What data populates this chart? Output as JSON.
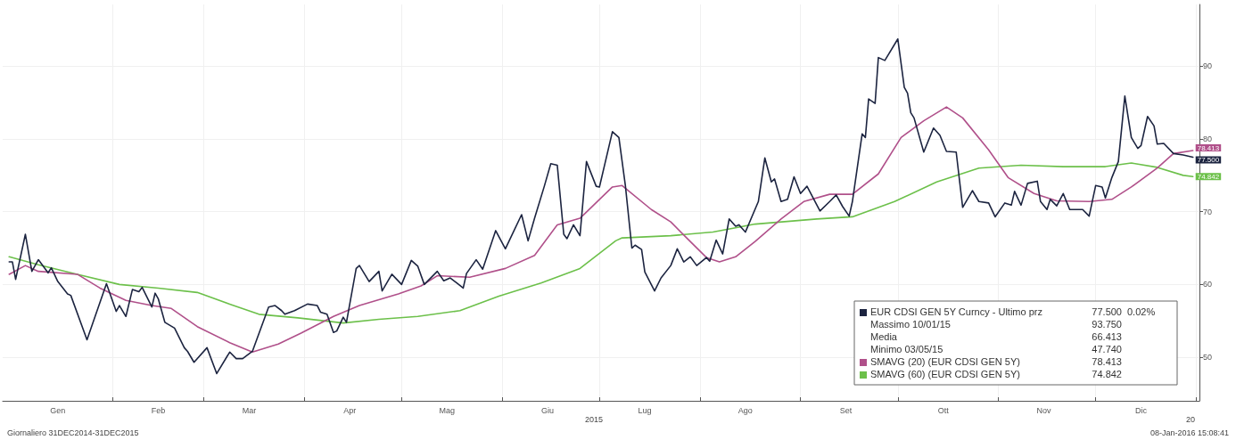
{
  "chart_data": {
    "type": "line",
    "xlim": [
      "2014-12-29",
      "2016-01-02"
    ],
    "ylim": [
      44,
      98.5
    ],
    "yticks": [
      50,
      60,
      70,
      80,
      90
    ],
    "xticks": [
      {
        "value": "2015-01-15",
        "label": "Gen"
      },
      {
        "value": "2015-02-15",
        "label": "Feb"
      },
      {
        "value": "2015-03-15",
        "label": "Mar"
      },
      {
        "value": "2015-04-15",
        "label": "Apr"
      },
      {
        "value": "2015-05-15",
        "label": "Mag"
      },
      {
        "value": "2015-06-15",
        "label": "Giu"
      },
      {
        "value": "2015-07-15",
        "label": "Lug"
      },
      {
        "value": "2015-08-15",
        "label": "Ago"
      },
      {
        "value": "2015-09-15",
        "label": "Set"
      },
      {
        "value": "2015-10-15",
        "label": "Ott"
      },
      {
        "value": "2015-11-15",
        "label": "Nov"
      },
      {
        "value": "2015-12-15",
        "label": "Dic"
      },
      {
        "value": "2015-02-01",
        "label": null
      },
      {
        "value": "2015-03-01",
        "label": null
      },
      {
        "value": "2015-04-01",
        "label": null
      },
      {
        "value": "2015-05-01",
        "label": null
      },
      {
        "value": "2015-06-01",
        "label": null
      },
      {
        "value": "2015-07-01",
        "label": null
      },
      {
        "value": "2015-08-01",
        "label": null
      },
      {
        "value": "2015-09-01",
        "label": null
      },
      {
        "value": "2015-10-01",
        "label": null
      },
      {
        "value": "2015-11-01",
        "label": null
      },
      {
        "value": "2015-12-01",
        "label": null
      },
      {
        "value": "2016-01-01",
        "label": null
      }
    ],
    "grid": true,
    "legend": "bottom right",
    "marker": "none",
    "line_style": "solid",
    "series": [
      {
        "name": "EUR CDSI GEN 5Y Curncy - Ultimo prz",
        "color": "#1c2440",
        "x": [
          "2014-12-31",
          "2015-01-01",
          "2015-01-02",
          "2015-01-05",
          "2015-01-07",
          "2015-01-09",
          "2015-01-12",
          "2015-01-13",
          "2015-01-15",
          "2015-01-18",
          "2015-01-19",
          "2015-01-24",
          "2015-01-30",
          "2015-02-02",
          "2015-02-03",
          "2015-02-05",
          "2015-02-07",
          "2015-02-09",
          "2015-02-10",
          "2015-02-13",
          "2015-02-14",
          "2015-02-15",
          "2015-02-17",
          "2015-02-20",
          "2015-02-23",
          "2015-02-24",
          "2015-02-26",
          "2015-03-02",
          "2015-03-05",
          "2015-03-09",
          "2015-03-11",
          "2015-03-13",
          "2015-03-16",
          "2015-03-21",
          "2015-03-23",
          "2015-03-25",
          "2015-03-26",
          "2015-03-29",
          "2015-04-02",
          "2015-04-05",
          "2015-04-06",
          "2015-04-08",
          "2015-04-10",
          "2015-04-11",
          "2015-04-13",
          "2015-04-14",
          "2015-04-17",
          "2015-04-18",
          "2015-04-21",
          "2015-04-24",
          "2015-04-25",
          "2015-04-28",
          "2015-05-01",
          "2015-05-04",
          "2015-05-06",
          "2015-05-08",
          "2015-05-12",
          "2015-05-14",
          "2015-05-16",
          "2015-05-18",
          "2015-05-20",
          "2015-05-21",
          "2015-05-24",
          "2015-05-26",
          "2015-05-30",
          "2015-06-02",
          "2015-06-07",
          "2015-06-09",
          "2015-06-11",
          "2015-06-14",
          "2015-06-16",
          "2015-06-18",
          "2015-06-20",
          "2015-06-21",
          "2015-06-23",
          "2015-06-25",
          "2015-06-27",
          "2015-06-30",
          "2015-07-01",
          "2015-07-05",
          "2015-07-07",
          "2015-07-09",
          "2015-07-11",
          "2015-07-12",
          "2015-07-14",
          "2015-07-15",
          "2015-07-18",
          "2015-07-20",
          "2015-07-23",
          "2015-07-25",
          "2015-07-27",
          "2015-07-29",
          "2015-07-31",
          "2015-08-03",
          "2015-08-04",
          "2015-08-06",
          "2015-08-08",
          "2015-08-10",
          "2015-08-12",
          "2015-08-13",
          "2015-08-15",
          "2015-08-19",
          "2015-08-21",
          "2015-08-23",
          "2015-08-24",
          "2015-08-26",
          "2015-08-28",
          "2015-08-30",
          "2015-09-01",
          "2015-09-03",
          "2015-09-07",
          "2015-09-10",
          "2015-09-12",
          "2015-09-14",
          "2015-09-16",
          "2015-09-17",
          "2015-09-20",
          "2015-09-21",
          "2015-09-22",
          "2015-09-24",
          "2015-09-25",
          "2015-09-27",
          "2015-10-01",
          "2015-10-03",
          "2015-10-04",
          "2015-10-05",
          "2015-10-06",
          "2015-10-09",
          "2015-10-12",
          "2015-10-14",
          "2015-10-16",
          "2015-10-19",
          "2015-10-21",
          "2015-10-24",
          "2015-10-26",
          "2015-10-29",
          "2015-10-31",
          "2015-11-03",
          "2015-11-05",
          "2015-11-06",
          "2015-11-08",
          "2015-11-10",
          "2015-11-13",
          "2015-11-14",
          "2015-11-16",
          "2015-11-17",
          "2015-11-19",
          "2015-11-21",
          "2015-11-23",
          "2015-11-27",
          "2015-11-29",
          "2015-12-01",
          "2015-12-03",
          "2015-12-04",
          "2015-12-06",
          "2015-12-08",
          "2015-12-10",
          "2015-12-12",
          "2015-12-14",
          "2015-12-15",
          "2015-12-17",
          "2015-12-19",
          "2015-12-20",
          "2015-12-22",
          "2015-12-25",
          "2015-12-28",
          "2015-12-31"
        ],
        "values": [
          63.1,
          63.1,
          60.7,
          66.9,
          61.8,
          63.4,
          61.6,
          62.3,
          60.4,
          58.7,
          58.5,
          52.4,
          60.1,
          56.3,
          57.1,
          55.6,
          59.3,
          59.0,
          59.6,
          56.9,
          58.8,
          58.0,
          54.8,
          54.0,
          51.3,
          50.8,
          49.3,
          51.3,
          47.74,
          50.7,
          49.8,
          49.8,
          50.8,
          56.9,
          57.1,
          56.4,
          55.9,
          56.4,
          57.3,
          57.1,
          56.2,
          55.9,
          53.4,
          53.6,
          55.5,
          54.8,
          62.2,
          62.6,
          60.4,
          61.8,
          59.1,
          61.4,
          60.0,
          63.3,
          62.5,
          60.0,
          61.8,
          60.5,
          60.9,
          60.2,
          59.5,
          61.5,
          63.4,
          62.1,
          67.4,
          64.9,
          69.6,
          66.0,
          69.1,
          73.5,
          76.6,
          76.4,
          66.9,
          66.3,
          68.2,
          66.7,
          76.9,
          73.5,
          73.4,
          81.0,
          80.2,
          73.6,
          65.0,
          65.4,
          64.8,
          61.7,
          59.1,
          60.9,
          62.6,
          64.9,
          63.1,
          63.8,
          62.6,
          63.7,
          63.2,
          66.1,
          64.2,
          69.0,
          68.0,
          68.2,
          67.2,
          71.4,
          77.4,
          74.1,
          74.5,
          71.4,
          71.7,
          74.8,
          72.5,
          73.5,
          70.1,
          71.4,
          72.3,
          70.7,
          69.4,
          71.4,
          80.7,
          80.2,
          85.5,
          84.9,
          91.2,
          90.8,
          93.75,
          87.1,
          86.3,
          83.6,
          82.9,
          78.2,
          81.5,
          80.5,
          78.3,
          78.2,
          70.6,
          72.9,
          71.4,
          71.2,
          69.3,
          71.2,
          70.9,
          72.8,
          70.9,
          73.9,
          74.2,
          71.4,
          70.3,
          71.7,
          70.8,
          72.5,
          70.3,
          70.3,
          69.4,
          73.6,
          73.4,
          71.9,
          74.7,
          76.9,
          85.9,
          80.2,
          78.7,
          79.1,
          83.1,
          81.8,
          79.3,
          79.4,
          78.0,
          77.8,
          77.5
        ],
        "value_labels": [
          null,
          null,
          null,
          null,
          null,
          null,
          null,
          null,
          null,
          null,
          null,
          null,
          null,
          null,
          null,
          null,
          null,
          null,
          null,
          null,
          null,
          null,
          null,
          null,
          null,
          null,
          null,
          null,
          null,
          null,
          null,
          null,
          null,
          null,
          null,
          null,
          null,
          null,
          null,
          null,
          null,
          null,
          null,
          null,
          null,
          null,
          null,
          null,
          null,
          null,
          null,
          null,
          null,
          null,
          null,
          null,
          null,
          null,
          null,
          null,
          null,
          null,
          null,
          null,
          null,
          null,
          null,
          null,
          null,
          null,
          null,
          null,
          null,
          null,
          null,
          null,
          null,
          null,
          null,
          null,
          null,
          null,
          null,
          null,
          null,
          null,
          null,
          null,
          null,
          null,
          null,
          null,
          null,
          null,
          null,
          null,
          null,
          null,
          null,
          null,
          null,
          null,
          null,
          null,
          null,
          null,
          null,
          null,
          null,
          null,
          null,
          null,
          null,
          null,
          null,
          null,
          null,
          null,
          null,
          null,
          null,
          null,
          null,
          null,
          null,
          null,
          null,
          null,
          null,
          null,
          null,
          null,
          null,
          null,
          null,
          null,
          null,
          null,
          null,
          null,
          null,
          null,
          null,
          null,
          null,
          null,
          null,
          null,
          null,
          null,
          null,
          null,
          null,
          null,
          null,
          null,
          null,
          null,
          null,
          null,
          null,
          null,
          null,
          null,
          null,
          null,
          "77.500"
        ]
      },
      {
        "name": "SMAVG (20) (EUR CDSI GEN 5Y)",
        "color": "#b0508a",
        "x": [
          "2014-12-31",
          "2015-01-05",
          "2015-01-09",
          "2015-01-21",
          "2015-01-28",
          "2015-02-05",
          "2015-02-13",
          "2015-02-19",
          "2015-02-27",
          "2015-03-09",
          "2015-03-16",
          "2015-03-24",
          "2015-03-31",
          "2015-04-10",
          "2015-04-18",
          "2015-04-30",
          "2015-05-07",
          "2015-05-12",
          "2015-05-22",
          "2015-06-02",
          "2015-06-11",
          "2015-06-18",
          "2015-06-25",
          "2015-07-05",
          "2015-07-08",
          "2015-07-17",
          "2015-07-23",
          "2015-07-29",
          "2015-08-03",
          "2015-08-07",
          "2015-08-12",
          "2015-08-18",
          "2015-08-26",
          "2015-09-02",
          "2015-09-10",
          "2015-09-17",
          "2015-09-25",
          "2015-10-02",
          "2015-10-09",
          "2015-10-16",
          "2015-10-21",
          "2015-10-29",
          "2015-11-04",
          "2015-11-12",
          "2015-11-19",
          "2015-11-29",
          "2015-12-06",
          "2015-12-12",
          "2015-12-20",
          "2015-12-25",
          "2015-12-31"
        ],
        "values": [
          61.4,
          62.6,
          61.8,
          61.4,
          59.5,
          57.8,
          57.1,
          56.7,
          54.2,
          52.0,
          50.7,
          51.8,
          53.3,
          55.6,
          57.1,
          58.7,
          59.8,
          61.2,
          61.0,
          62.2,
          64.0,
          68.2,
          69.1,
          73.4,
          73.6,
          70.3,
          68.6,
          65.9,
          63.7,
          63.1,
          63.8,
          65.9,
          69.0,
          71.4,
          72.4,
          72.4,
          75.2,
          80.2,
          82.5,
          84.4,
          82.9,
          78.5,
          74.7,
          72.5,
          71.5,
          71.4,
          71.7,
          73.4,
          76.0,
          78.0,
          78.413
        ],
        "value_labels": [
          null,
          null,
          null,
          null,
          null,
          null,
          null,
          null,
          null,
          null,
          null,
          null,
          null,
          null,
          null,
          null,
          null,
          null,
          null,
          null,
          null,
          null,
          null,
          null,
          null,
          null,
          null,
          null,
          null,
          null,
          null,
          null,
          null,
          null,
          null,
          null,
          null,
          null,
          null,
          null,
          null,
          null,
          null,
          null,
          null,
          null,
          null,
          null,
          null,
          null,
          "78.413"
        ]
      },
      {
        "name": "SMAVG (60) (EUR CDSI GEN 5Y)",
        "color": "#6cc04a",
        "x": [
          "2014-12-31",
          "2015-01-09",
          "2015-01-21",
          "2015-02-03",
          "2015-02-15",
          "2015-02-27",
          "2015-03-09",
          "2015-03-18",
          "2015-03-30",
          "2015-04-13",
          "2015-04-24",
          "2015-05-06",
          "2015-05-19",
          "2015-05-31",
          "2015-06-13",
          "2015-06-25",
          "2015-07-06",
          "2015-07-08",
          "2015-07-23",
          "2015-08-05",
          "2015-08-18",
          "2015-09-06",
          "2015-09-17",
          "2015-09-30",
          "2015-10-13",
          "2015-10-26",
          "2015-11-08",
          "2015-11-21",
          "2015-12-04",
          "2015-12-12",
          "2015-12-20",
          "2015-12-28",
          "2015-12-31"
        ],
        "values": [
          63.8,
          62.7,
          61.4,
          60.0,
          59.5,
          58.9,
          57.3,
          55.9,
          55.4,
          54.7,
          55.2,
          55.6,
          56.4,
          58.4,
          60.2,
          62.2,
          66.0,
          66.4,
          66.7,
          67.2,
          68.3,
          69.0,
          69.3,
          71.4,
          74.1,
          76.0,
          76.4,
          76.2,
          76.2,
          76.7,
          76.1,
          75.0,
          74.842
        ],
        "value_labels": [
          null,
          null,
          null,
          null,
          null,
          null,
          null,
          null,
          null,
          null,
          null,
          null,
          null,
          null,
          null,
          null,
          null,
          null,
          null,
          null,
          null,
          null,
          null,
          null,
          null,
          null,
          null,
          null,
          null,
          null,
          null,
          null,
          "74.842"
        ]
      }
    ],
    "annotations": [
      "0.02%",
      "Massimo 10/01/15 93.750",
      "Media 66.413",
      "Minimo 03/05/15 47.740",
      "2015",
      "20",
      "Giornaliero 31DEC2014-31DEC2015",
      "08-Jan-2016 15:08:41"
    ]
  }
}
